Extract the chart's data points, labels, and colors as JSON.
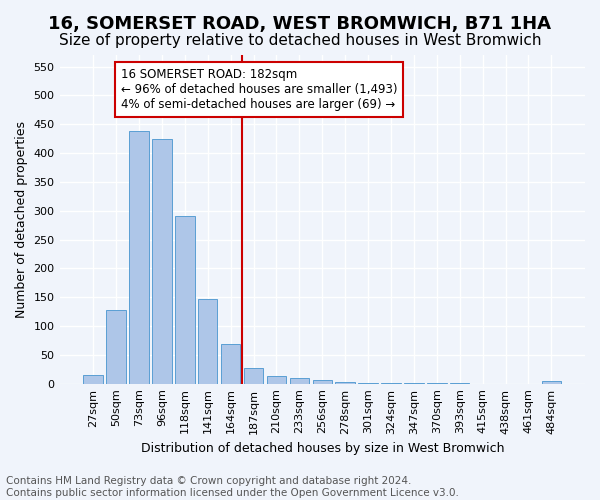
{
  "title": "16, SOMERSET ROAD, WEST BROMWICH, B71 1HA",
  "subtitle": "Size of property relative to detached houses in West Bromwich",
  "xlabel": "Distribution of detached houses by size in West Bromwich",
  "ylabel": "Number of detached properties",
  "footnote1": "Contains HM Land Registry data © Crown copyright and database right 2024.",
  "footnote2": "Contains public sector information licensed under the Open Government Licence v3.0.",
  "categories": [
    "27sqm",
    "50sqm",
    "73sqm",
    "96sqm",
    "118sqm",
    "141sqm",
    "164sqm",
    "187sqm",
    "210sqm",
    "233sqm",
    "256sqm",
    "278sqm",
    "301sqm",
    "324sqm",
    "347sqm",
    "370sqm",
    "393sqm",
    "415sqm",
    "438sqm",
    "461sqm",
    "484sqm"
  ],
  "bar_values": [
    15,
    127,
    438,
    425,
    290,
    147,
    68,
    28,
    14,
    10,
    6,
    3,
    2,
    2,
    1,
    1,
    1,
    0,
    0,
    0,
    5
  ],
  "bar_color": "#aec6e8",
  "bar_edge_color": "#5a9fd4",
  "vline_x_index": 7,
  "vline_color": "#cc0000",
  "annotation_line1": "16 SOMERSET ROAD: 182sqm",
  "annotation_line2": "← 96% of detached houses are smaller (1,493)",
  "annotation_line3": "4% of semi-detached houses are larger (69) →",
  "annotation_box_edge_color": "#cc0000",
  "annotation_fill_color": "#ffffff",
  "ylim": [
    0,
    570
  ],
  "yticks": [
    0,
    50,
    100,
    150,
    200,
    250,
    300,
    350,
    400,
    450,
    500,
    550
  ],
  "background_color": "#f0f4fb",
  "grid_color": "#ffffff",
  "title_fontsize": 13,
  "subtitle_fontsize": 11,
  "ylabel_fontsize": 9,
  "xlabel_fontsize": 9,
  "tick_fontsize": 8,
  "annotation_fontsize": 8.5,
  "footnote_fontsize": 7.5
}
